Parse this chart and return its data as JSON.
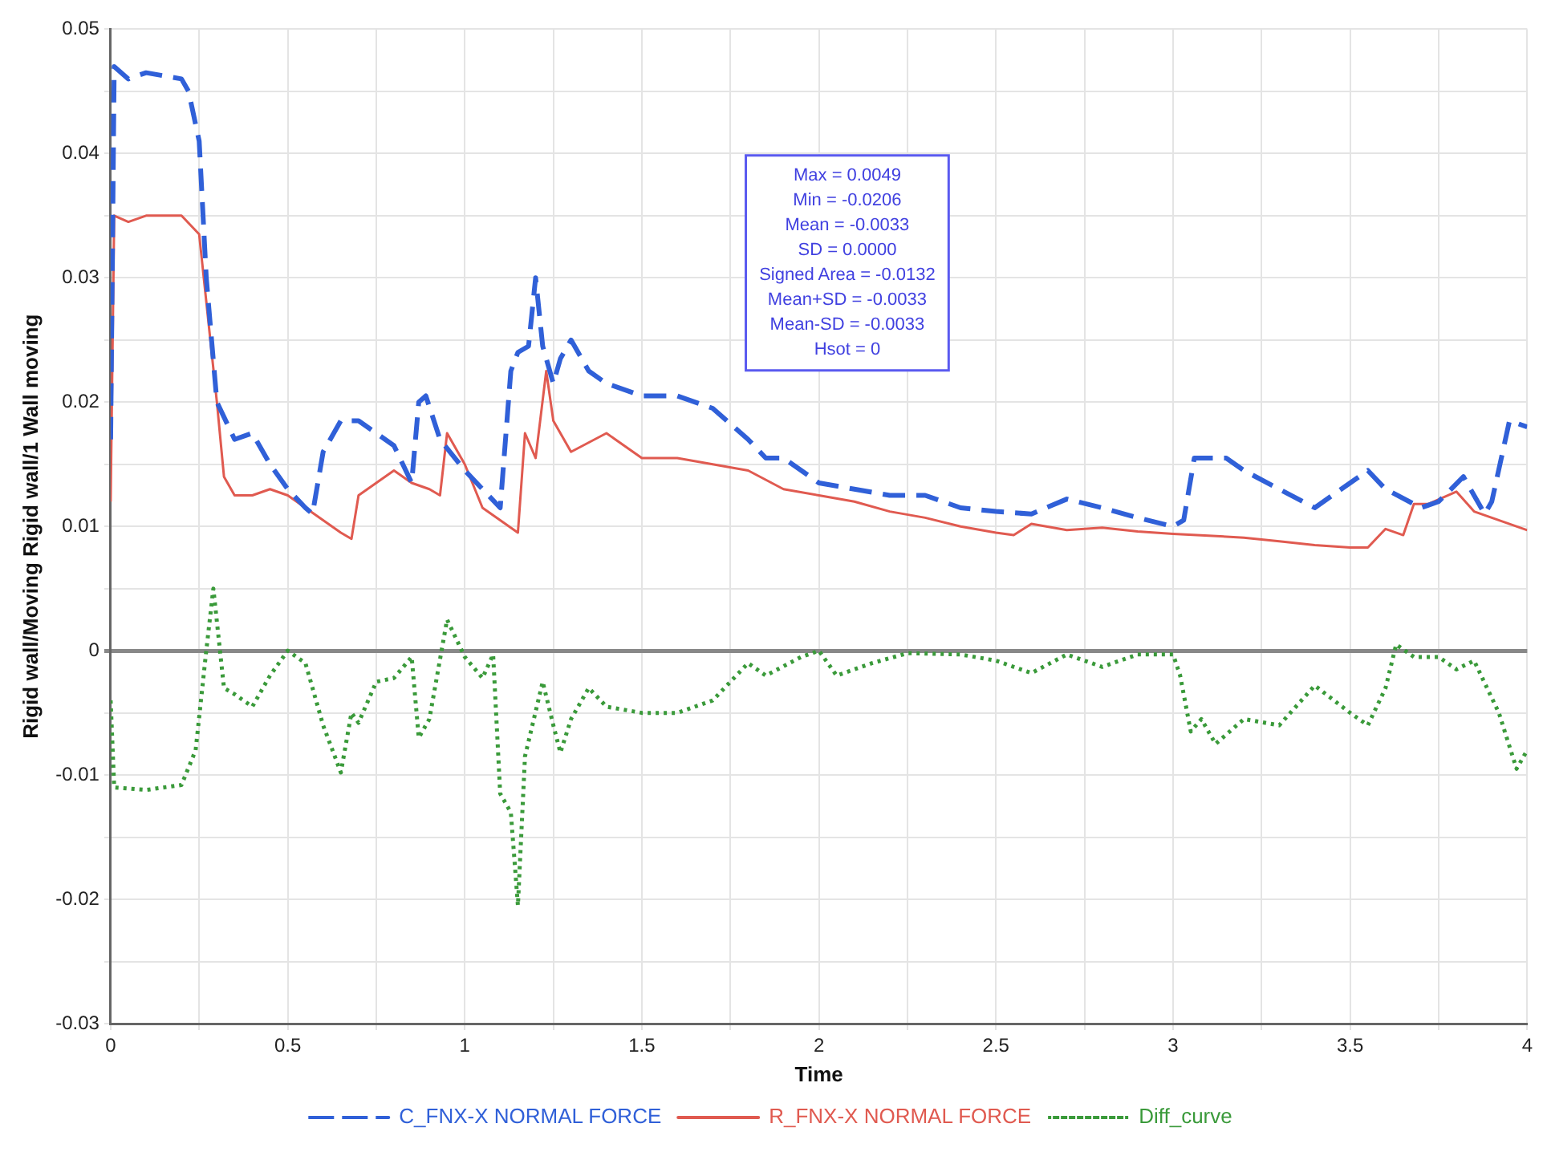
{
  "chart_data": {
    "type": "line",
    "xlabel": "Time",
    "ylabel": "Rigid wall/Moving Rigid wall/1 Wall moving",
    "xlim": [
      0,
      4
    ],
    "xticks": [
      0,
      {
        "value": 0.25,
        "label": null
      },
      0.5,
      {
        "value": 0.75,
        "label": null
      },
      1,
      {
        "value": 1.25,
        "label": null
      },
      1.5,
      {
        "value": 1.75,
        "label": null
      },
      2,
      {
        "value": 2.25,
        "label": null
      },
      2.5,
      {
        "value": 2.75,
        "label": null
      },
      3,
      {
        "value": 3.25,
        "label": null
      },
      3.5,
      {
        "value": 3.75,
        "label": null
      },
      4
    ],
    "ylim": [
      -0.03,
      0.05
    ],
    "yticks": [
      -0.03,
      {
        "value": -0.025,
        "label": null
      },
      -0.02,
      {
        "value": -0.015,
        "label": null
      },
      -0.01,
      {
        "value": -0.005,
        "label": null
      },
      0,
      {
        "value": 0.005,
        "label": null
      },
      0.01,
      {
        "value": 0.015,
        "label": null
      },
      0.02,
      {
        "value": 0.025,
        "label": null
      },
      0.03,
      {
        "value": 0.035,
        "label": null
      },
      0.04,
      {
        "value": 0.045,
        "label": null
      },
      0.05
    ],
    "grid": true,
    "legend": "bottom",
    "marker": "none",
    "annotations": [
      "Max = 0.0049",
      "Min = -0.0206",
      "Mean = -0.0033",
      "SD = 0.0000",
      "Signed Area = -0.0132",
      "Mean+SD = -0.0033",
      "Mean-SD = -0.0033",
      "Hsot = 0"
    ],
    "series": [
      {
        "name": "C_FNX-X NORMAL FORCE",
        "color": "#3060d8",
        "line_style": "dashed",
        "x": [
          0,
          0.01,
          0.05,
          0.1,
          0.2,
          0.22,
          0.25,
          0.27,
          0.3,
          0.35,
          0.4,
          0.45,
          0.5,
          0.55,
          0.57,
          0.6,
          0.65,
          0.7,
          0.75,
          0.8,
          0.85,
          0.87,
          0.89,
          0.93,
          1.0,
          1.05,
          1.1,
          1.13,
          1.15,
          1.18,
          1.2,
          1.22,
          1.25,
          1.27,
          1.3,
          1.35,
          1.4,
          1.5,
          1.6,
          1.7,
          1.8,
          1.85,
          1.9,
          2.0,
          2.1,
          2.2,
          2.3,
          2.4,
          2.5,
          2.6,
          2.7,
          2.8,
          2.9,
          3.0,
          3.03,
          3.06,
          3.1,
          3.15,
          3.2,
          3.3,
          3.4,
          3.5,
          3.55,
          3.6,
          3.7,
          3.75,
          3.82,
          3.88,
          3.9,
          3.95,
          4.0
        ],
        "values": [
          0.017,
          0.047,
          0.046,
          0.0465,
          0.046,
          0.045,
          0.041,
          0.03,
          0.02,
          0.017,
          0.0175,
          0.015,
          0.013,
          0.0115,
          0.011,
          0.016,
          0.0185,
          0.0185,
          0.0175,
          0.0165,
          0.0135,
          0.02,
          0.0205,
          0.017,
          0.0145,
          0.013,
          0.0115,
          0.0225,
          0.024,
          0.0245,
          0.03,
          0.0245,
          0.0215,
          0.0235,
          0.025,
          0.0225,
          0.0215,
          0.0205,
          0.0205,
          0.0195,
          0.017,
          0.0155,
          0.0155,
          0.0135,
          0.013,
          0.0125,
          0.0125,
          0.0115,
          0.0112,
          0.011,
          0.0122,
          0.0115,
          0.0107,
          0.01,
          0.0105,
          0.0155,
          0.0155,
          0.0155,
          0.0145,
          0.013,
          0.0115,
          0.0135,
          0.0145,
          0.013,
          0.0115,
          0.012,
          0.014,
          0.011,
          0.012,
          0.0185,
          0.018
        ]
      },
      {
        "name": "R_FNX-X NORMAL FORCE",
        "color": "#e05a50",
        "line_style": "solid",
        "x": [
          0,
          0.01,
          0.05,
          0.1,
          0.2,
          0.25,
          0.3,
          0.32,
          0.35,
          0.4,
          0.45,
          0.5,
          0.55,
          0.6,
          0.65,
          0.68,
          0.7,
          0.75,
          0.8,
          0.85,
          0.9,
          0.93,
          0.95,
          1.0,
          1.05,
          1.1,
          1.15,
          1.17,
          1.2,
          1.23,
          1.25,
          1.3,
          1.4,
          1.5,
          1.6,
          1.7,
          1.8,
          1.9,
          2.0,
          2.1,
          2.2,
          2.3,
          2.4,
          2.5,
          2.55,
          2.6,
          2.7,
          2.8,
          2.9,
          3.0,
          3.2,
          3.3,
          3.4,
          3.5,
          3.55,
          3.6,
          3.65,
          3.68,
          3.72,
          3.8,
          3.85,
          3.9,
          4.0
        ],
        "values": [
          0.012,
          0.035,
          0.0345,
          0.035,
          0.035,
          0.0335,
          0.02,
          0.014,
          0.0125,
          0.0125,
          0.013,
          0.0125,
          0.0115,
          0.0105,
          0.0095,
          0.009,
          0.0125,
          0.0135,
          0.0145,
          0.0135,
          0.013,
          0.0125,
          0.0175,
          0.015,
          0.0115,
          0.0105,
          0.0095,
          0.0175,
          0.0155,
          0.0225,
          0.0185,
          0.016,
          0.0175,
          0.0155,
          0.0155,
          0.015,
          0.0145,
          0.013,
          0.0125,
          0.012,
          0.0112,
          0.0107,
          0.01,
          0.0095,
          0.0093,
          0.0102,
          0.0097,
          0.0099,
          0.0096,
          0.0094,
          0.0091,
          0.0088,
          0.0085,
          0.0083,
          0.0083,
          0.0098,
          0.0093,
          0.0118,
          0.0118,
          0.0128,
          0.0112,
          0.0107,
          0.0097
        ]
      },
      {
        "name": "Diff_curve",
        "color": "#3a9a3a",
        "line_style": "dotted",
        "x": [
          0,
          0.01,
          0.1,
          0.2,
          0.24,
          0.27,
          0.29,
          0.32,
          0.35,
          0.4,
          0.45,
          0.5,
          0.55,
          0.6,
          0.65,
          0.68,
          0.7,
          0.75,
          0.8,
          0.85,
          0.87,
          0.9,
          0.95,
          1.0,
          1.05,
          1.08,
          1.1,
          1.13,
          1.15,
          1.17,
          1.22,
          1.25,
          1.27,
          1.3,
          1.35,
          1.4,
          1.5,
          1.6,
          1.7,
          1.8,
          1.85,
          1.95,
          2.0,
          2.05,
          2.15,
          2.25,
          2.4,
          2.5,
          2.6,
          2.7,
          2.8,
          2.9,
          3.0,
          3.02,
          3.05,
          3.08,
          3.12,
          3.2,
          3.3,
          3.4,
          3.5,
          3.55,
          3.6,
          3.63,
          3.68,
          3.75,
          3.8,
          3.85,
          3.92,
          3.97,
          4.0
        ],
        "values": [
          -0.004,
          -0.011,
          -0.0112,
          -0.0108,
          -0.008,
          0,
          0.005,
          -0.003,
          -0.0035,
          -0.0045,
          -0.002,
          0,
          -0.001,
          -0.006,
          -0.0098,
          -0.005,
          -0.0058,
          -0.0025,
          -0.0022,
          -0.0005,
          -0.007,
          -0.0055,
          0.0025,
          -0.0005,
          -0.0022,
          -0.0003,
          -0.0115,
          -0.013,
          -0.0205,
          -0.0085,
          -0.0025,
          -0.006,
          -0.0082,
          -0.0055,
          -0.003,
          -0.0045,
          -0.005,
          -0.005,
          -0.004,
          -0.001,
          -0.002,
          -0.0005,
          0,
          -0.002,
          -0.001,
          -0.0002,
          -0.0003,
          -0.0008,
          -0.0018,
          -0.0003,
          -0.0013,
          -0.0003,
          -0.0003,
          -0.002,
          -0.0065,
          -0.0055,
          -0.0075,
          -0.0055,
          -0.006,
          -0.0028,
          -0.005,
          -0.006,
          -0.003,
          0.0005,
          -0.0005,
          -0.0005,
          -0.0015,
          -0.0008,
          -0.005,
          -0.0095,
          -0.008
        ]
      }
    ]
  }
}
